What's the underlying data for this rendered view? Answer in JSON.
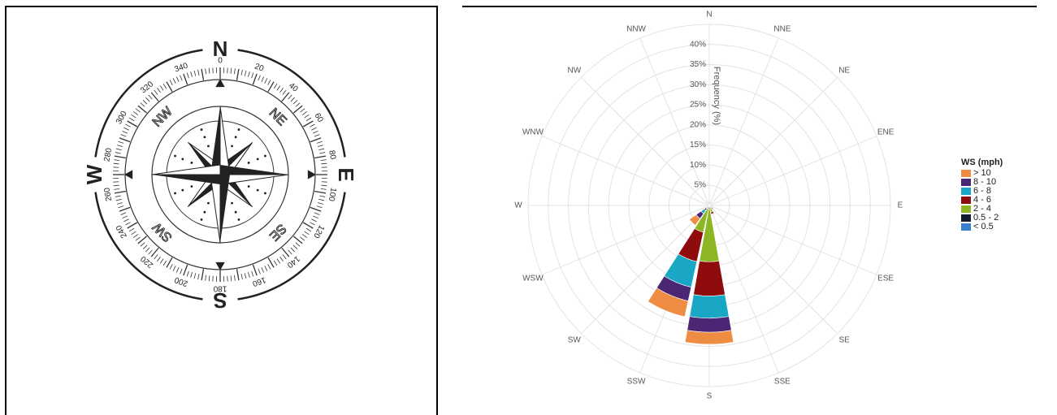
{
  "compass": {
    "cardinals": [
      "N",
      "E",
      "S",
      "W"
    ],
    "intercardinals": [
      "NE",
      "SE",
      "SW",
      "NW"
    ],
    "degree_labels": [
      "0",
      "20",
      "40",
      "60",
      "80",
      "100",
      "120",
      "140",
      "160",
      "180",
      "200",
      "220",
      "240",
      "260",
      "280",
      "300",
      "320",
      "340"
    ]
  },
  "chart_data": {
    "type": "windrose",
    "directions": [
      "N",
      "NNE",
      "NE",
      "ENE",
      "E",
      "ESE",
      "SE",
      "SSE",
      "S",
      "SSW",
      "SW",
      "WSW",
      "W",
      "WNW",
      "NW",
      "NNW"
    ],
    "radial_axis": {
      "label": "Frequency (%)",
      "ticks": [
        "5%",
        "10%",
        "15%",
        "20%",
        "25%",
        "30%",
        "35%",
        "40%"
      ],
      "max": 45
    },
    "legend_title": "WS (mph)",
    "series": [
      {
        "name": "< 0.5",
        "color": "#3a7ecf",
        "values": [
          0.3,
          0.1,
          0.1,
          0,
          0,
          0,
          0,
          0.2,
          0.4,
          0.3,
          0.2,
          0,
          0,
          0,
          0,
          0.2
        ]
      },
      {
        "name": "0.5 - 2",
        "color": "#111c2e",
        "values": [
          0.5,
          0.2,
          0.1,
          0,
          0,
          0,
          0.3,
          0.5,
          0.6,
          0.5,
          0.4,
          0.1,
          0,
          0,
          0.1,
          0.3
        ]
      },
      {
        "name": "2 - 4",
        "color": "#8cb623",
        "values": [
          0,
          0,
          0,
          0,
          0,
          0,
          0.5,
          1.0,
          13,
          6.0,
          0.4,
          0,
          0,
          0,
          0,
          0
        ]
      },
      {
        "name": "4 - 6",
        "color": "#8e0c0c",
        "values": [
          0,
          0,
          0,
          0,
          0,
          0,
          0.3,
          0.5,
          8.5,
          7.5,
          0.5,
          0,
          0,
          0,
          0,
          0
        ]
      },
      {
        "name": "6 - 8",
        "color": "#1aa7c5",
        "values": [
          0,
          0,
          0,
          0,
          0,
          0,
          0,
          0,
          5.5,
          6.5,
          1.0,
          0,
          0,
          0,
          0,
          0
        ]
      },
      {
        "name": "8 - 10",
        "color": "#4b2675",
        "values": [
          0,
          0,
          0,
          0,
          0,
          0,
          0,
          0,
          3.5,
          3.5,
          1.5,
          0,
          0,
          0,
          0,
          0
        ]
      },
      {
        "name": "> 10",
        "color": "#ef8c43",
        "values": [
          0,
          0,
          0,
          0,
          0,
          0,
          0,
          0,
          3.0,
          4.0,
          2.0,
          0,
          0,
          0,
          0,
          0
        ]
      }
    ],
    "legend_order": [
      "> 10",
      "8 - 10",
      "6 - 8",
      "4 - 6",
      "2 - 4",
      "0.5 - 2",
      "< 0.5"
    ]
  }
}
